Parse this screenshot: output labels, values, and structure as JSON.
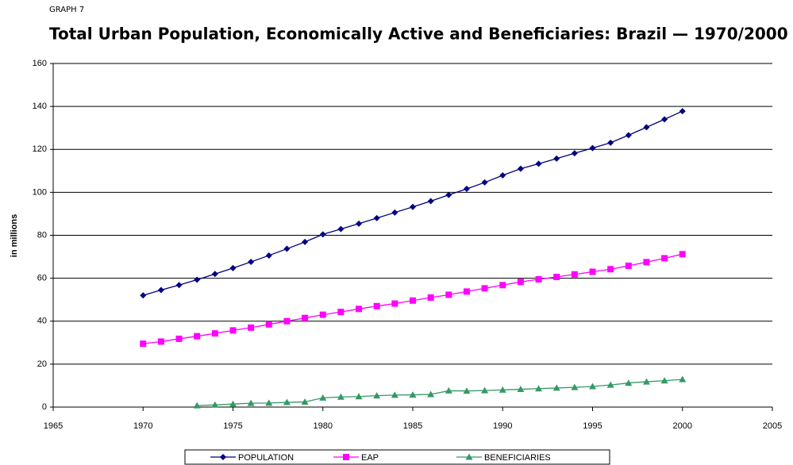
{
  "chart_data": {
    "type": "line",
    "supertitle": "GRAPH 7",
    "title": "Total Urban Population, Economically Active and Beneficiaries: Brazil — 1970/2000",
    "ylabel": "in millions",
    "x": [
      1970,
      1971,
      1972,
      1973,
      1974,
      1975,
      1976,
      1977,
      1978,
      1979,
      1980,
      1981,
      1982,
      1983,
      1984,
      1985,
      1986,
      1987,
      1988,
      1989,
      1990,
      1991,
      1992,
      1993,
      1994,
      1995,
      1996,
      1997,
      1998,
      1999,
      2000
    ],
    "series": [
      {
        "name": "POPULATION",
        "color": "#000080",
        "marker": "diamond",
        "values": [
          52,
          54.5,
          56.8,
          59.3,
          62,
          64.7,
          67.6,
          70.6,
          73.7,
          76.9,
          80.4,
          82.9,
          85.4,
          88,
          90.6,
          93.2,
          95.9,
          98.8,
          101.6,
          104.6,
          107.9,
          111,
          113.3,
          115.7,
          118.2,
          120.6,
          123.1,
          126.6,
          130.3,
          134,
          137.8
        ]
      },
      {
        "name": "EAP",
        "color": "#ff00ff",
        "marker": "square",
        "values": [
          29.5,
          30.5,
          31.8,
          33,
          34.3,
          35.7,
          37,
          38.5,
          40,
          41.5,
          43,
          44.3,
          45.7,
          47,
          48.2,
          49.6,
          51,
          52.3,
          53.8,
          55.3,
          56.8,
          58.3,
          59.5,
          60.6,
          61.8,
          63,
          64.2,
          65.8,
          67.5,
          69.3,
          71.2
        ]
      },
      {
        "name": "BENEFICIARIES",
        "color": "#339966",
        "marker": "triangle",
        "values": [
          null,
          null,
          null,
          0.7,
          1.0,
          1.4,
          1.8,
          1.9,
          2.2,
          2.4,
          4.3,
          4.7,
          4.9,
          5.3,
          5.6,
          5.7,
          5.9,
          7.6,
          7.5,
          7.7,
          8.0,
          8.3,
          8.6,
          8.9,
          9.2,
          9.6,
          10.3,
          11.2,
          11.8,
          12.3,
          12.9
        ]
      }
    ],
    "xlim": [
      1965,
      2005
    ],
    "xticks": [
      1965,
      1970,
      1975,
      1980,
      1985,
      1990,
      1995,
      2000,
      2005
    ],
    "ylim": [
      0,
      160
    ],
    "yticks": [
      0,
      20,
      40,
      60,
      80,
      100,
      120,
      140,
      160
    ],
    "grid": true,
    "legend": "bottom"
  }
}
